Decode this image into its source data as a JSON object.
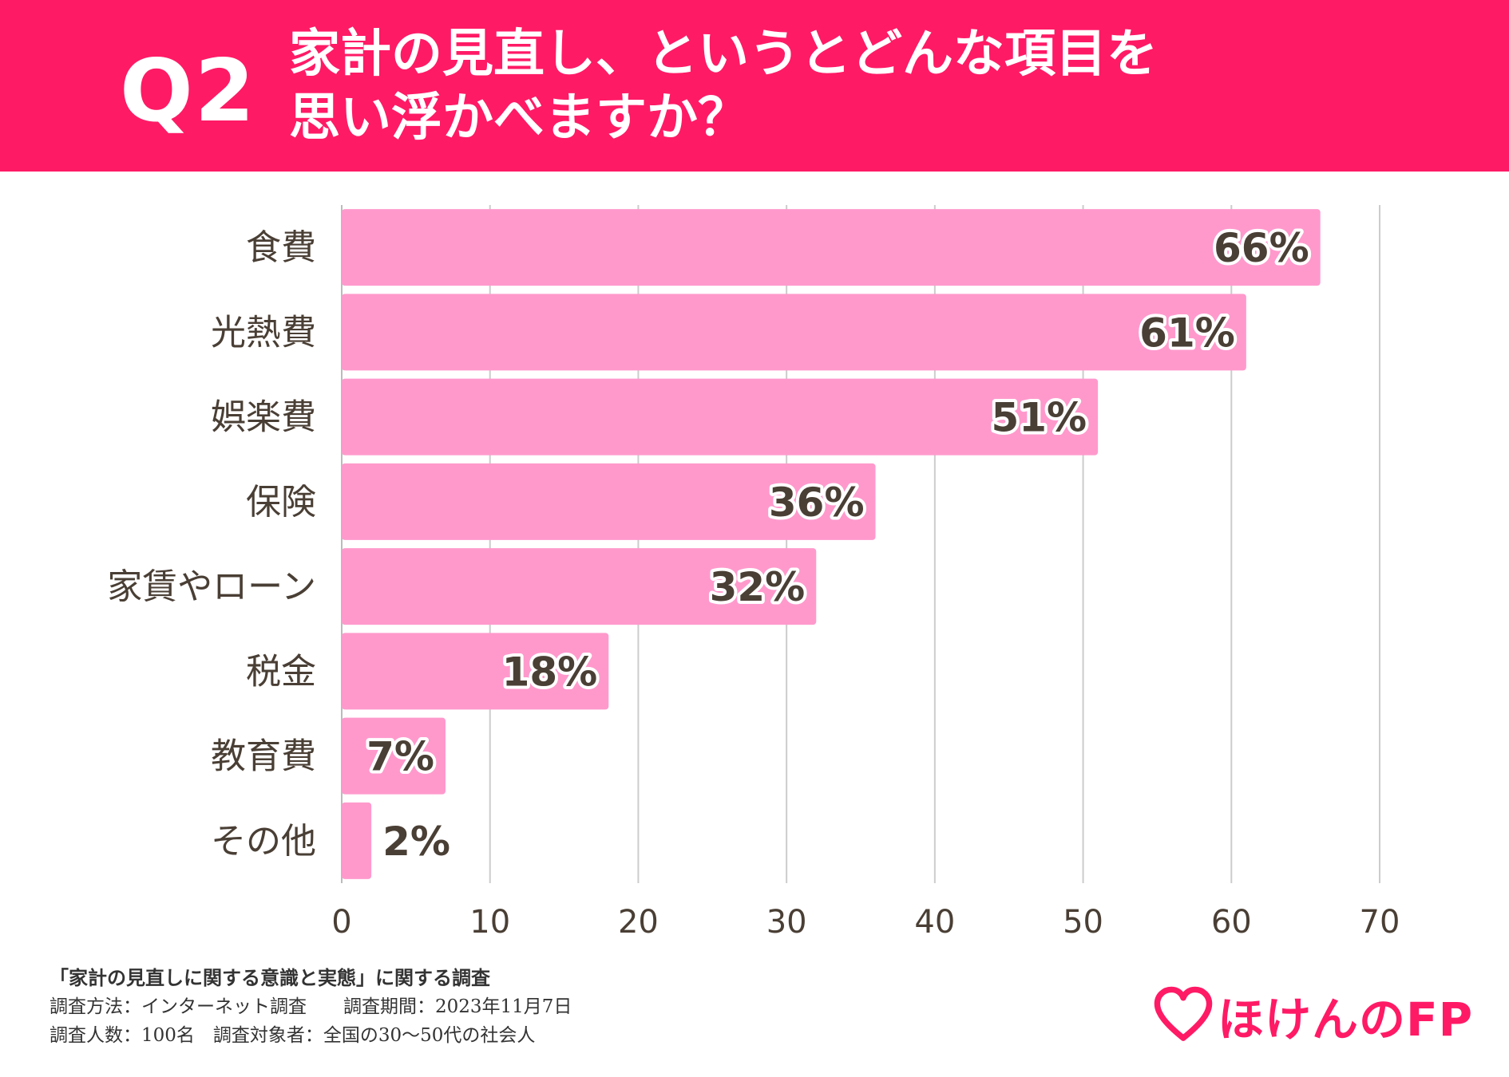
{
  "header": {
    "q_label": "Q2",
    "title_lines": [
      "家計の見直し、というとどんな項目を",
      "思い浮かべますか？"
    ]
  },
  "colors": {
    "header_bg": "#ff1a66",
    "bar": "#ff99cc",
    "text": "#4a3f35",
    "grid": "#cccccc"
  },
  "chart_data": {
    "type": "bar",
    "orientation": "horizontal",
    "title": "家計の見直し、というとどんな項目を思い浮かべますか？",
    "categories": [
      "食費",
      "光熱費",
      "娯楽費",
      "保険",
      "家賃やローン",
      "税金",
      "教育費",
      "その他"
    ],
    "values": [
      66,
      61,
      51,
      36,
      32,
      18,
      7,
      2
    ],
    "value_labels": [
      "66%",
      "61%",
      "51%",
      "36%",
      "32%",
      "18%",
      "7%",
      "2%"
    ],
    "xlim": [
      0,
      70
    ],
    "xticks": [
      0,
      10,
      20,
      30,
      40,
      50,
      60,
      70
    ],
    "xlabel": "",
    "ylabel": "",
    "grid": true,
    "legend": "none"
  },
  "footnote": {
    "title": "「家計の見直しに関する意識と実態」に関する調査",
    "line1": "調査方法：インターネット調査　　調査期間：2023年11月7日",
    "line2": "調査人数：100名　調査対象者：全国の30〜50代の社会人"
  },
  "logo": {
    "text": "ほけんのFP",
    "icon": "heart-icon"
  }
}
